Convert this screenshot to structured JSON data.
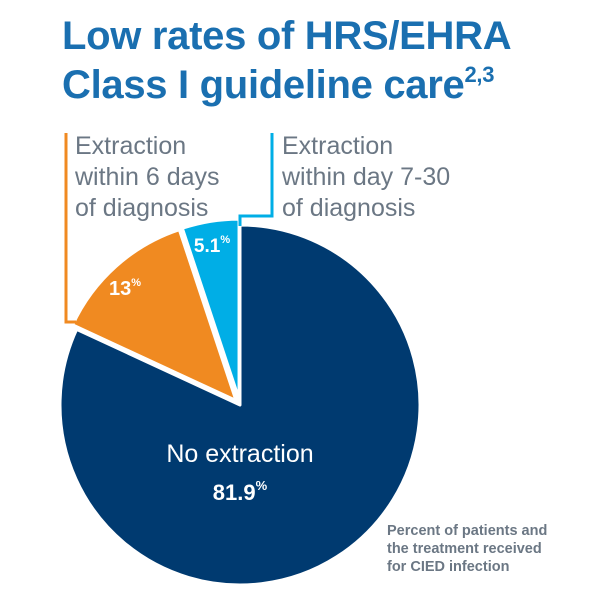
{
  "title": {
    "text": "Low rates of HRS/EHRA Class I guideline care",
    "superscript": "2,3"
  },
  "callouts": {
    "orange": [
      "Extraction",
      "within 6 days",
      "of diagnosis"
    ],
    "cyan": [
      "Extraction",
      "within day 7-30",
      "of diagnosis"
    ]
  },
  "footnote": [
    "Percent of patients and",
    "the treatment received",
    "for CIED infection"
  ],
  "chart_data": {
    "type": "pie",
    "title": "Low rates of HRS/EHRA Class I guideline care",
    "slices": [
      {
        "label": "No extraction",
        "value": 81.9,
        "display_value": "81.9",
        "unit": "%",
        "color": "#003a70"
      },
      {
        "label": "Extraction within 6 days of diagnosis",
        "value": 13,
        "display_value": "13",
        "unit": "%",
        "color": "#f08a21"
      },
      {
        "label": "Extraction within day 7-30 of diagnosis",
        "value": 5.1,
        "display_value": "5.1",
        "unit": "%",
        "color": "#00aee6"
      }
    ],
    "start": "12 o'clock",
    "direction": "clockwise",
    "legend": "callouts"
  }
}
